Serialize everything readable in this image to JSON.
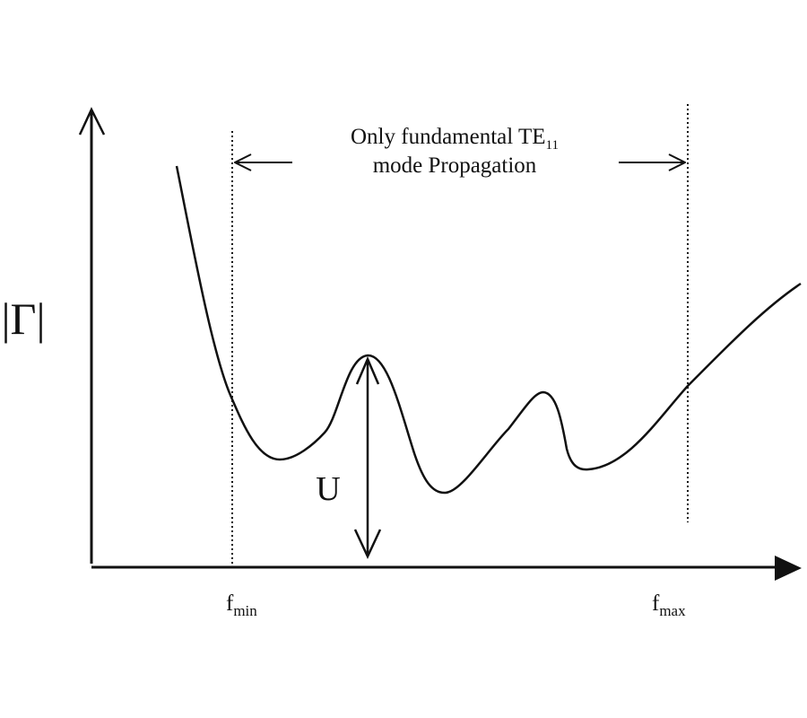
{
  "band_annotation": {
    "line1_text": "Only fundamental TE",
    "line1_subscript": "11",
    "line2_text": "mode Propagation"
  },
  "y_axis_label": "|Γ|",
  "depth_label": "U",
  "markers": {
    "min": {
      "base": "f",
      "subscript": "min"
    },
    "max": {
      "base": "f",
      "subscript": "max"
    }
  },
  "colors": {
    "ink": "#111111",
    "background": "#ffffff"
  }
}
